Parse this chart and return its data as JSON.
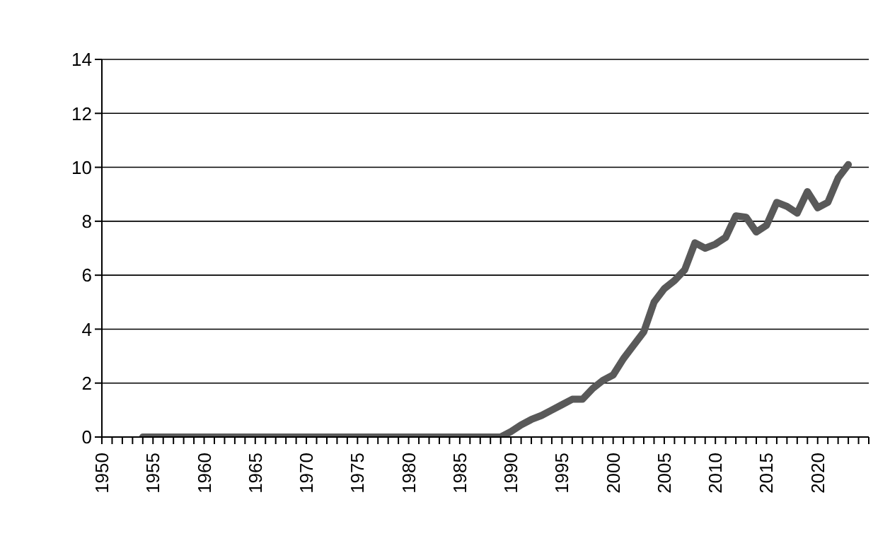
{
  "chart_data": {
    "type": "line",
    "x": [
      1954,
      1989,
      1990,
      1991,
      1992,
      1993,
      1994,
      1995,
      1996,
      1997,
      1998,
      1999,
      2000,
      2001,
      2002,
      2003,
      2004,
      2005,
      2006,
      2007,
      2008,
      2009,
      2010,
      2011,
      2012,
      2013,
      2014,
      2015,
      2016,
      2017,
      2018,
      2019,
      2020,
      2021,
      2022,
      2023
    ],
    "series": [
      {
        "color": "#595959",
        "values": [
          0,
          0,
          0.2,
          0.45,
          0.65,
          0.8,
          1.0,
          1.2,
          1.4,
          1.4,
          1.8,
          2.1,
          2.3,
          2.9,
          3.4,
          3.9,
          5.0,
          5.5,
          5.8,
          6.2,
          7.2,
          7.0,
          7.15,
          7.4,
          8.2,
          8.15,
          7.6,
          7.85,
          8.7,
          8.55,
          8.3,
          9.1,
          8.5,
          8.7,
          9.6,
          10.1
        ]
      }
    ],
    "xlim": [
      1950,
      2025
    ],
    "xticks": [
      1950,
      {
        "value": 1951,
        "label": null
      },
      {
        "value": 1952,
        "label": null
      },
      {
        "value": 1953,
        "label": null
      },
      {
        "value": 1954,
        "label": null
      },
      1955,
      {
        "value": 1956,
        "label": null
      },
      {
        "value": 1957,
        "label": null
      },
      {
        "value": 1958,
        "label": null
      },
      {
        "value": 1959,
        "label": null
      },
      1960,
      {
        "value": 1961,
        "label": null
      },
      {
        "value": 1962,
        "label": null
      },
      {
        "value": 1963,
        "label": null
      },
      {
        "value": 1964,
        "label": null
      },
      1965,
      {
        "value": 1966,
        "label": null
      },
      {
        "value": 1967,
        "label": null
      },
      {
        "value": 1968,
        "label": null
      },
      {
        "value": 1969,
        "label": null
      },
      1970,
      {
        "value": 1971,
        "label": null
      },
      {
        "value": 1972,
        "label": null
      },
      {
        "value": 1973,
        "label": null
      },
      {
        "value": 1974,
        "label": null
      },
      1975,
      {
        "value": 1976,
        "label": null
      },
      {
        "value": 1977,
        "label": null
      },
      {
        "value": 1978,
        "label": null
      },
      {
        "value": 1979,
        "label": null
      },
      1980,
      {
        "value": 1981,
        "label": null
      },
      {
        "value": 1982,
        "label": null
      },
      {
        "value": 1983,
        "label": null
      },
      {
        "value": 1984,
        "label": null
      },
      1985,
      {
        "value": 1986,
        "label": null
      },
      {
        "value": 1987,
        "label": null
      },
      {
        "value": 1988,
        "label": null
      },
      {
        "value": 1989,
        "label": null
      },
      1990,
      {
        "value": 1991,
        "label": null
      },
      {
        "value": 1992,
        "label": null
      },
      {
        "value": 1993,
        "label": null
      },
      {
        "value": 1994,
        "label": null
      },
      1995,
      {
        "value": 1996,
        "label": null
      },
      {
        "value": 1997,
        "label": null
      },
      {
        "value": 1998,
        "label": null
      },
      {
        "value": 1999,
        "label": null
      },
      2000,
      {
        "value": 2001,
        "label": null
      },
      {
        "value": 2002,
        "label": null
      },
      {
        "value": 2003,
        "label": null
      },
      {
        "value": 2004,
        "label": null
      },
      2005,
      {
        "value": 2006,
        "label": null
      },
      {
        "value": 2007,
        "label": null
      },
      {
        "value": 2008,
        "label": null
      },
      {
        "value": 2009,
        "label": null
      },
      2010,
      {
        "value": 2011,
        "label": null
      },
      {
        "value": 2012,
        "label": null
      },
      {
        "value": 2013,
        "label": null
      },
      {
        "value": 2014,
        "label": null
      },
      2015,
      {
        "value": 2016,
        "label": null
      },
      {
        "value": 2017,
        "label": null
      },
      {
        "value": 2018,
        "label": null
      },
      {
        "value": 2019,
        "label": null
      },
      2020,
      {
        "value": 2021,
        "label": null
      },
      {
        "value": 2022,
        "label": null
      },
      {
        "value": 2023,
        "label": null
      },
      {
        "value": 2024,
        "label": null
      },
      {
        "value": 2025,
        "label": null
      }
    ],
    "ylim": [
      0,
      14
    ],
    "yticks": [
      0,
      2,
      4,
      6,
      8,
      10,
      12,
      14
    ],
    "grid": "y",
    "marker": "none",
    "line_style": "solid",
    "legend": false
  }
}
